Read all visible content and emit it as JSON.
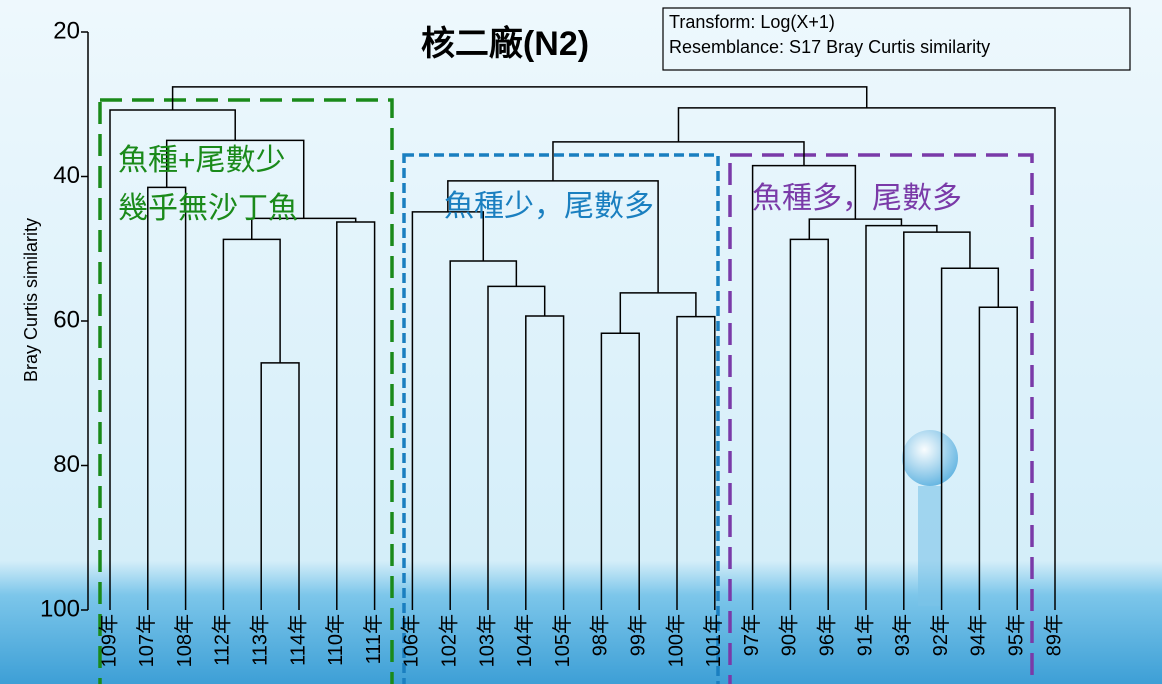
{
  "chart_data": {
    "type": "dendrogram",
    "title": "核二廠(N2)",
    "note": [
      "Transform: Log(X+1)",
      "Resemblance: S17 Bray Curtis similarity"
    ],
    "y_label": "Bray Curtis similarity",
    "ylim": [
      20,
      100
    ],
    "yticks": [
      20,
      40,
      60,
      80,
      100
    ],
    "line_color": "#000000",
    "annotations": [
      "魚種+尾數少",
      "幾乎無沙丁魚",
      "魚種少，尾數多",
      "魚種多，尾數多"
    ],
    "tree": {
      "height": 27.6,
      "children": [
        {
          "height": 30.8,
          "children": [
            {
              "label": "109年"
            },
            {
              "height": 35.0,
              "children": [
                {
                  "height": 41.5,
                  "children": [
                    {
                      "label": "107年"
                    },
                    {
                      "label": "108年"
                    }
                  ]
                },
                {
                  "height": 45.8,
                  "children": [
                    {
                      "height": 48.7,
                      "children": [
                        {
                          "label": "112年"
                        },
                        {
                          "height": 65.8,
                          "children": [
                            {
                              "label": "113年"
                            },
                            {
                              "label": "114年"
                            }
                          ]
                        }
                      ]
                    },
                    {
                      "height": 46.3,
                      "children": [
                        {
                          "label": "110年"
                        },
                        {
                          "label": "111年"
                        }
                      ]
                    }
                  ]
                }
              ]
            }
          ]
        },
        {
          "height": 30.5,
          "children": [
            {
              "height": 35.2,
              "children": [
                {
                  "height": 40.6,
                  "children": [
                    {
                      "height": 44.9,
                      "children": [
                        {
                          "label": "106年"
                        },
                        {
                          "height": 51.7,
                          "children": [
                            {
                              "label": "102年"
                            },
                            {
                              "height": 55.2,
                              "children": [
                                {
                                  "label": "103年"
                                },
                                {
                                  "height": 59.3,
                                  "children": [
                                    {
                                      "label": "104年"
                                    },
                                    {
                                      "label": "105年"
                                    }
                                  ]
                                }
                              ]
                            }
                          ]
                        }
                      ]
                    },
                    {
                      "height": 56.1,
                      "children": [
                        {
                          "height": 61.7,
                          "children": [
                            {
                              "label": "98年"
                            },
                            {
                              "label": "99年"
                            }
                          ]
                        },
                        {
                          "height": 59.4,
                          "children": [
                            {
                              "label": "100年"
                            },
                            {
                              "label": "101年"
                            }
                          ]
                        }
                      ]
                    }
                  ]
                },
                {
                  "height": 38.5,
                  "children": [
                    {
                      "label": "97年"
                    },
                    {
                      "height": 45.9,
                      "children": [
                        {
                          "height": 48.7,
                          "children": [
                            {
                              "label": "90年"
                            },
                            {
                              "label": "96年"
                            }
                          ]
                        },
                        {
                          "height": 46.8,
                          "children": [
                            {
                              "label": "91年"
                            },
                            {
                              "height": 47.7,
                              "children": [
                                {
                                  "label": "93年"
                                },
                                {
                                  "height": 52.7,
                                  "children": [
                                    {
                                      "label": "92年"
                                    },
                                    {
                                      "height": 58.1,
                                      "children": [
                                        {
                                          "label": "94年"
                                        },
                                        {
                                          "label": "95年"
                                        }
                                      ]
                                    }
                                  ]
                                }
                              ]
                            }
                          ]
                        }
                      ]
                    }
                  ]
                }
              ]
            },
            {
              "label": "89年"
            }
          ]
        }
      ]
    }
  }
}
